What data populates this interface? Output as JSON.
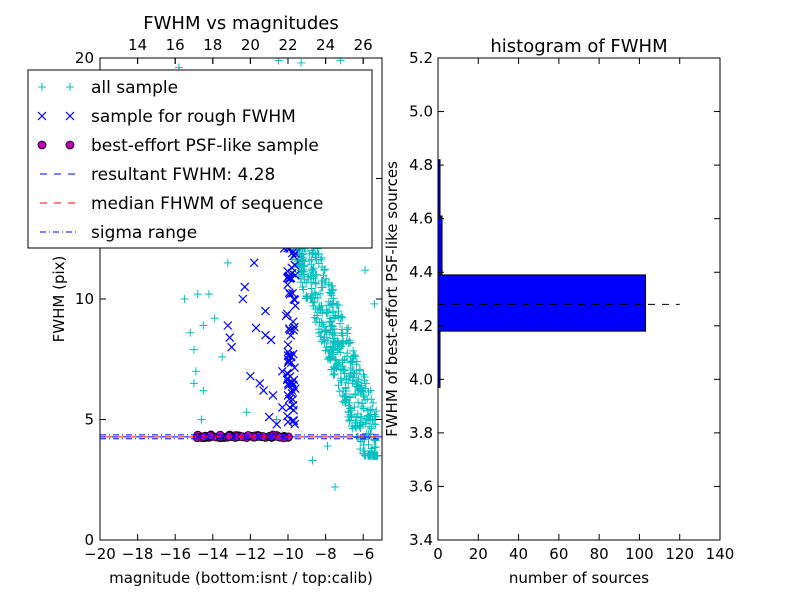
{
  "chart_data": [
    {
      "type": "scatter",
      "title": "FWHM vs magnitudes",
      "xlabel": "magnitude (bottom:isnt / top:calib)",
      "ylabel": "FWHM (pix)",
      "xlim": [
        -20,
        -5
      ],
      "ylim": [
        0,
        20
      ],
      "x_ticks": [
        -20,
        -18,
        -16,
        -14,
        -12,
        -10,
        -8,
        -6
      ],
      "y_ticks": [
        0,
        5,
        10,
        15,
        20
      ],
      "top_xlim": [
        12,
        27
      ],
      "top_x_ticks": [
        14,
        16,
        18,
        20,
        22,
        24,
        26
      ],
      "series": [
        {
          "name": "all sample",
          "marker": "plus",
          "color": "#00bfbf",
          "points": [
            [
              -15.8,
              19.6
            ],
            [
              -10.5,
              19.9
            ],
            [
              -9.3,
              19.8
            ],
            [
              -7.2,
              19.9
            ],
            [
              -8.6,
              19.2
            ],
            [
              -6.5,
              18.4
            ],
            [
              -14.8,
              17.0
            ],
            [
              -9.0,
              17.2
            ],
            [
              -6.3,
              16.5
            ],
            [
              -12.0,
              15.8
            ],
            [
              -10.2,
              15.3
            ],
            [
              -8.1,
              15.0
            ],
            [
              -10.8,
              14.2
            ],
            [
              -9.6,
              13.8
            ],
            [
              -13.2,
              11.5
            ],
            [
              -14.2,
              10.2
            ],
            [
              -15.5,
              10.0
            ],
            [
              -14.8,
              10.2
            ],
            [
              -13.9,
              9.2
            ],
            [
              -14.5,
              8.9
            ],
            [
              -15.2,
              8.6
            ],
            [
              -15.0,
              7.9
            ],
            [
              -13.5,
              7.6
            ],
            [
              -14.9,
              7.0
            ],
            [
              -15.0,
              6.5
            ],
            [
              -14.5,
              6.2
            ],
            [
              -12.2,
              5.3
            ],
            [
              -14.6,
              5.0
            ],
            [
              -10.6,
              5.0
            ],
            [
              -6.5,
              13.0
            ],
            [
              -5.9,
              11.2
            ],
            [
              -5.4,
              9.8
            ],
            [
              -6.8,
              8.8
            ],
            [
              -7.5,
              2.2
            ],
            [
              -8.7,
              3.3
            ],
            [
              -5.3,
              3.5
            ],
            [
              -7.9,
              3.9
            ],
            [
              -6.0,
              4.8
            ],
            [
              -5.6,
              6.2
            ],
            [
              -7.0,
              7.5
            ]
          ]
        },
        {
          "name": "sample for rough FWHM",
          "marker": "x",
          "color": "#0000ff",
          "points": [
            [
              -12.0,
              15.4
            ],
            [
              -11.4,
              15.0
            ],
            [
              -10.7,
              16.2
            ],
            [
              -10.4,
              15.7
            ],
            [
              -11.8,
              14.2
            ],
            [
              -11.3,
              13.3
            ],
            [
              -12.4,
              10.0
            ],
            [
              -12.3,
              10.5
            ],
            [
              -11.8,
              11.5
            ],
            [
              -11.2,
              9.5
            ],
            [
              -13.2,
              8.9
            ],
            [
              -13.1,
              8.4
            ],
            [
              -13.0,
              8.0
            ],
            [
              -11.7,
              8.8
            ],
            [
              -11.2,
              8.5
            ],
            [
              -10.9,
              8.3
            ],
            [
              -12.0,
              6.8
            ],
            [
              -11.5,
              6.5
            ],
            [
              -11.3,
              6.2
            ],
            [
              -10.8,
              6.0
            ],
            [
              -10.3,
              5.5
            ],
            [
              -10.6,
              4.8
            ],
            [
              -11.0,
              5.1
            ],
            [
              -9.9,
              10.2
            ],
            [
              -10.1,
              9.3
            ],
            [
              -9.9,
              8.7
            ],
            [
              -10.0,
              7.8
            ],
            [
              -10.3,
              7.0
            ],
            [
              -9.8,
              6.5
            ],
            [
              -10.0,
              6.0
            ],
            [
              -9.9,
              5.5
            ],
            [
              -10.0,
              4.9
            ],
            [
              -10.2,
              12.1
            ],
            [
              -9.8,
              11.3
            ],
            [
              -10.0,
              10.9
            ],
            [
              -10.4,
              13.5
            ],
            [
              -9.9,
              14.6
            ],
            [
              -11.0,
              13.9
            ]
          ]
        },
        {
          "name": "best-effort PSF-like sample",
          "marker": "circle",
          "color": "#bf00bf",
          "points": [
            [
              -14.8,
              4.35
            ],
            [
              -14.6,
              4.28
            ],
            [
              -14.4,
              4.31
            ],
            [
              -14.2,
              4.26
            ],
            [
              -14.0,
              4.3
            ],
            [
              -13.8,
              4.27
            ],
            [
              -13.6,
              4.33
            ],
            [
              -13.4,
              4.25
            ],
            [
              -13.2,
              4.29
            ],
            [
              -13.0,
              4.3
            ],
            [
              -12.8,
              4.26
            ],
            [
              -12.6,
              4.32
            ],
            [
              -12.4,
              4.28
            ],
            [
              -12.2,
              4.25
            ],
            [
              -12.0,
              4.31
            ],
            [
              -11.8,
              4.27
            ],
            [
              -11.6,
              4.34
            ],
            [
              -11.4,
              4.29
            ],
            [
              -11.2,
              4.26
            ],
            [
              -11.0,
              4.3
            ],
            [
              -10.8,
              4.28
            ],
            [
              -10.6,
              4.33
            ],
            [
              -10.4,
              4.27
            ],
            [
              -10.2,
              4.3
            ],
            [
              -10.0,
              4.26
            ]
          ]
        },
        {
          "name": "resultant FWHM: 4.28",
          "type": "hline",
          "style": "dashed",
          "color": "#0000ff",
          "value": 4.28
        },
        {
          "name": "median FHWM of sequence",
          "type": "hline",
          "style": "dashed",
          "color": "#ff0000",
          "value": 4.28
        },
        {
          "name": "sigma range",
          "type": "hband",
          "style": "dashdot",
          "color": "#0000ff",
          "values": [
            4.2,
            4.36
          ]
        }
      ],
      "legend": "top-left"
    },
    {
      "type": "bar",
      "orientation": "horizontal",
      "title": "histogram of FWHM",
      "xlabel": "number of sources",
      "ylabel": "FWHM of best-effort PSF-like sources",
      "xlim": [
        0,
        140
      ],
      "ylim": [
        3.4,
        5.2
      ],
      "x_ticks": [
        0,
        20,
        40,
        60,
        80,
        100,
        120,
        140
      ],
      "y_ticks": [
        3.4,
        3.6,
        3.8,
        4.0,
        4.2,
        4.4,
        4.6,
        4.8,
        5.0,
        5.2
      ],
      "bars": [
        {
          "y0": 3.97,
          "y1": 4.18,
          "value": 1
        },
        {
          "y0": 4.18,
          "y1": 4.39,
          "value": 103
        },
        {
          "y0": 4.39,
          "y1": 4.61,
          "value": 2
        },
        {
          "y0": 4.61,
          "y1": 4.82,
          "value": 1
        }
      ],
      "bar_color": "#0000ff",
      "reference_line": {
        "value": 4.28,
        "xmax": 120,
        "style": "dashed",
        "color": "#000000"
      }
    }
  ]
}
